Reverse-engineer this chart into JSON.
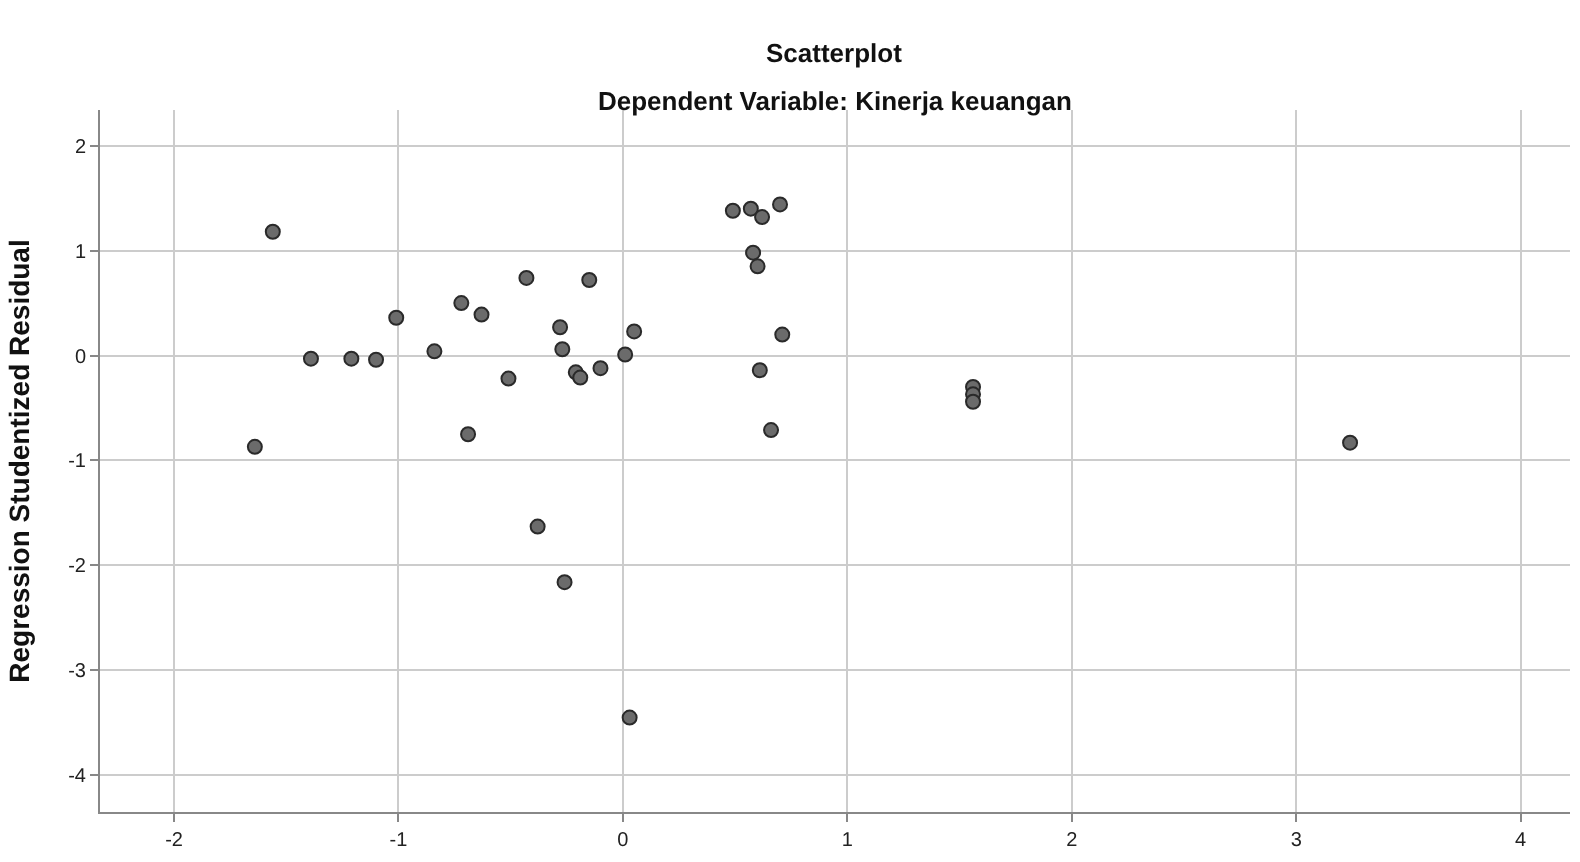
{
  "chart_data": {
    "type": "scatter",
    "title": "Scatterplot",
    "subtitle": "Dependent Variable: Kinerja keuangan",
    "ylabel": "Regression Studentized Residual",
    "x": [
      -1.56,
      -1.64,
      -1.39,
      -1.21,
      -1.1,
      -1.01,
      -0.84,
      -0.72,
      -0.63,
      -0.69,
      -0.51,
      -0.43,
      -0.28,
      -0.27,
      -0.21,
      -0.19,
      -0.15,
      -0.1,
      0.01,
      0.05,
      0.49,
      0.57,
      0.62,
      0.7,
      0.58,
      0.6,
      0.71,
      0.61,
      0.66,
      1.56,
      1.56,
      1.56,
      3.24,
      -0.38,
      -0.26,
      0.03
    ],
    "values": [
      1.18,
      -0.87,
      -0.03,
      -0.03,
      -0.04,
      0.36,
      0.04,
      0.5,
      0.39,
      -0.75,
      -0.22,
      0.74,
      0.27,
      0.06,
      -0.16,
      -0.21,
      0.72,
      -0.12,
      0.01,
      0.23,
      1.38,
      1.4,
      1.32,
      1.44,
      0.98,
      0.85,
      0.2,
      -0.14,
      -0.71,
      -0.3,
      -0.37,
      -0.44,
      -0.83,
      -1.63,
      -2.16,
      -3.45
    ],
    "color": "#6b6b6b",
    "marker": "circle",
    "xlim": [
      -2.33,
      4.22
    ],
    "xticks": [
      -2,
      -1,
      0,
      1,
      2,
      3,
      4
    ],
    "ylim": [
      -4.35,
      2.34
    ],
    "yticks": [
      -4,
      -3,
      -2,
      -1,
      0,
      1,
      2
    ],
    "grid": true,
    "legend": false
  }
}
